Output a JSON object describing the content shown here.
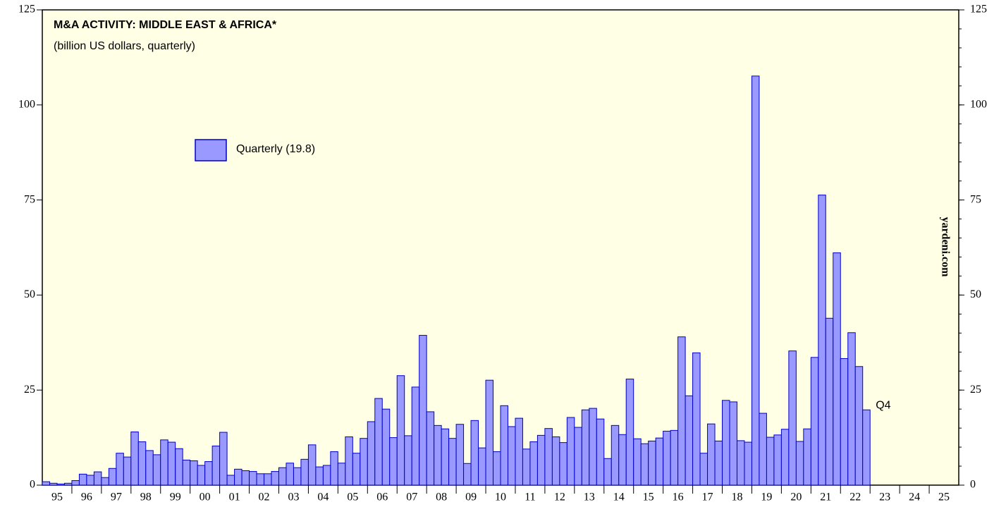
{
  "chart_data": {
    "type": "bar",
    "title": "M&A ACTIVITY: MIDDLE EAST & AFRICA*",
    "subtitle": "(billion US dollars, quarterly)",
    "legend_label": "Quarterly (19.8)",
    "annotation": "Q4",
    "source": "yardeni.com",
    "color": "#9999ff",
    "edge_color": "#0000cc",
    "background": "#ffffe6",
    "xtick_labels": [
      "95",
      "96",
      "97",
      "98",
      "99",
      "00",
      "01",
      "02",
      "03",
      "04",
      "05",
      "06",
      "07",
      "08",
      "09",
      "10",
      "11",
      "12",
      "13",
      "14",
      "15",
      "16",
      "17",
      "18",
      "19",
      "20",
      "21",
      "22",
      "23",
      "24",
      "25"
    ],
    "values": [
      0.9,
      0.5,
      0.3,
      0.5,
      1.2,
      2.9,
      2.6,
      3.5,
      2.0,
      4.4,
      8.4,
      7.4,
      14.0,
      11.4,
      9.1,
      8.0,
      11.9,
      11.3,
      9.6,
      6.6,
      6.4,
      5.2,
      6.2,
      10.3,
      13.9,
      2.6,
      4.2,
      3.8,
      3.6,
      3.0,
      3.0,
      3.6,
      4.6,
      5.8,
      4.6,
      6.8,
      10.6,
      4.8,
      5.2,
      8.8,
      5.8,
      12.7,
      8.4,
      12.3,
      16.7,
      22.8,
      20.0,
      12.5,
      28.8,
      13.0,
      25.8,
      39.4,
      19.3,
      15.7,
      14.8,
      12.3,
      16.0,
      5.7,
      17.0,
      9.8,
      27.6,
      8.8,
      20.9,
      15.4,
      17.6,
      9.5,
      11.4,
      13.1,
      14.9,
      12.7,
      11.2,
      17.8,
      15.2,
      19.8,
      20.2,
      17.4,
      7.0,
      15.7,
      13.3,
      27.9,
      12.2,
      10.9,
      11.6,
      12.4,
      14.2,
      14.4,
      39.0,
      23.5,
      34.8,
      8.4,
      16.1,
      11.6,
      22.3,
      21.9,
      11.7,
      11.3,
      107.6,
      18.9,
      12.6,
      13.2,
      14.7,
      35.3,
      11.5,
      14.8,
      33.6,
      76.3,
      43.9,
      61.1,
      33.3,
      40.1,
      31.2,
      19.8
    ],
    "ylim": [
      0,
      125
    ],
    "yticks": [
      0,
      25,
      50,
      75,
      100,
      125
    ],
    "y2lim": [
      0,
      125
    ],
    "y2ticks": [
      0,
      25,
      50,
      75,
      100,
      125
    ]
  }
}
